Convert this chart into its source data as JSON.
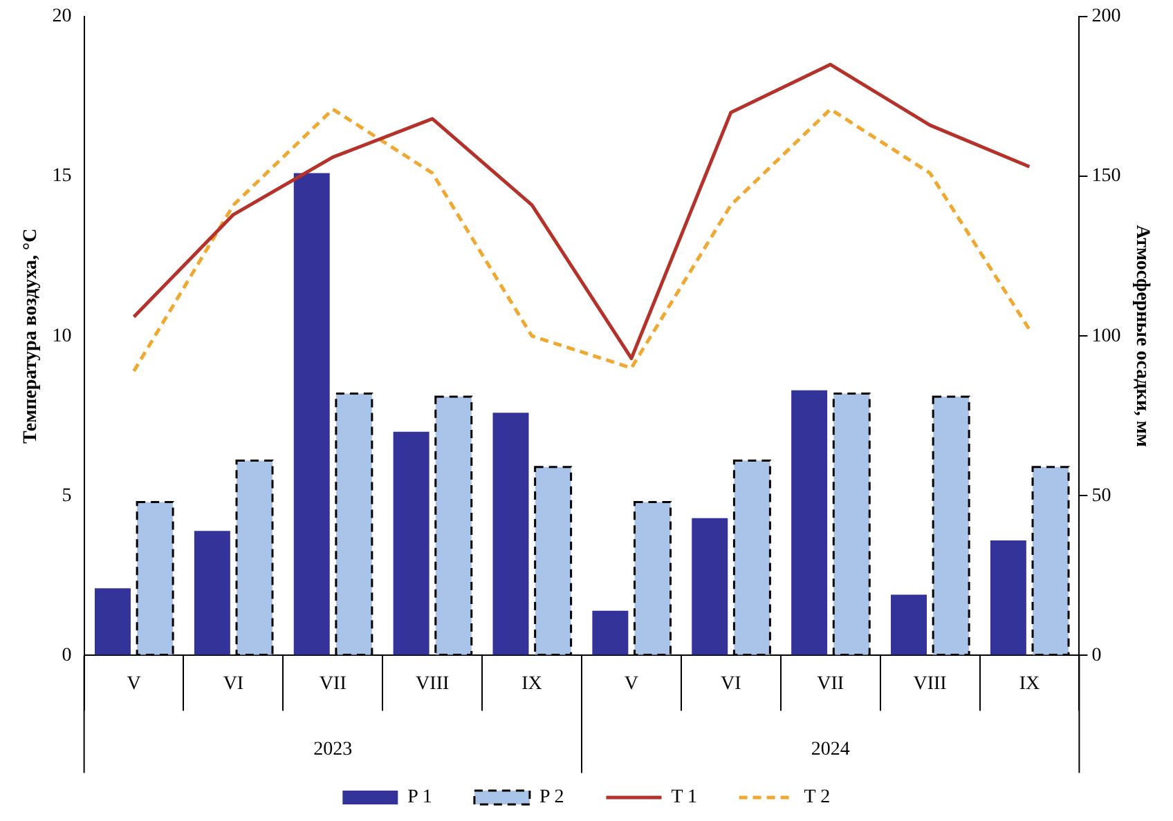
{
  "chart_data": {
    "type": "bar",
    "categories": [
      "V",
      "VI",
      "VII",
      "VIII",
      "IX",
      "V",
      "VI",
      "VII",
      "VIII",
      "IX"
    ],
    "ylabel": "Температура воздуха, °C",
    "y2label": "Атмосферные осадки, мм",
    "ylim": [
      0,
      20
    ],
    "yticks": [
      0,
      5,
      10,
      15,
      20
    ],
    "y2lim": [
      0,
      200
    ],
    "y2ticks": [
      0,
      50,
      100,
      150,
      200
    ],
    "annotations": [
      "2023",
      "2024"
    ],
    "grid": false,
    "legend": "bottom",
    "series": [
      {
        "name": "P 1",
        "axis": "y2",
        "color": "#333399",
        "values": [
          21,
          39,
          151,
          70,
          76,
          14,
          43,
          83,
          19,
          36
        ]
      },
      {
        "name": "P 2",
        "axis": "y2",
        "color": "#a9c4e8",
        "line_style": "dashed",
        "values": [
          48,
          61,
          82,
          81,
          59,
          48,
          61,
          82,
          81,
          59
        ]
      },
      {
        "name": "T 1",
        "type": "line",
        "color": "#b5322a",
        "line_style": "solid",
        "marker": "none",
        "values": [
          10.6,
          13.8,
          15.6,
          16.8,
          14.1,
          9.3,
          17.0,
          18.5,
          16.6,
          15.3
        ]
      },
      {
        "name": "T 2",
        "type": "line",
        "color": "#f0a830",
        "line_style": "dashed",
        "marker": "none",
        "values": [
          8.9,
          14.1,
          17.1,
          15.1,
          10.0,
          9.0,
          14.1,
          17.1,
          15.1,
          10.2
        ]
      }
    ]
  }
}
